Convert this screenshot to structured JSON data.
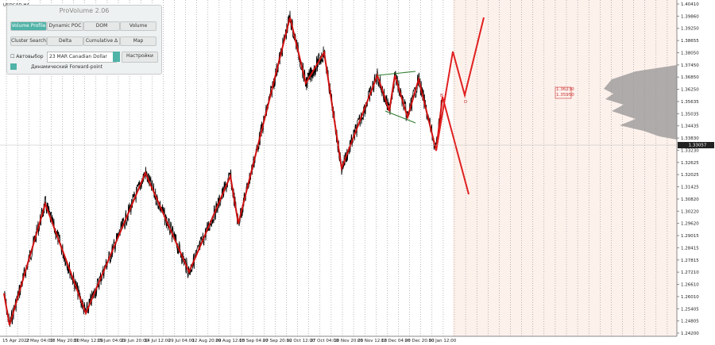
{
  "symbol": "USDCAD,H4",
  "panel": {
    "title": "ProVolume 2.06",
    "buttons": [
      "Volume Profile",
      "Dynamic POC",
      "DOM",
      "Volume",
      "Cluster Search",
      "Delta",
      "Cumulative Δ",
      "Map"
    ],
    "auto_select": "Автовыбор",
    "contract": "23 MAR Canadian Dollar",
    "settings": "Настройки",
    "forward_point": "Динамический Forward-point"
  },
  "price_axis": [
    "1.40410",
    "1.39860",
    "1.39250",
    "1.38655",
    "1.38050",
    "1.37450",
    "1.36850",
    "1.36250",
    "1.35635",
    "1.35035",
    "1.34435",
    "1.33830",
    "1.33230",
    "1.32625",
    "1.32025",
    "1.31425",
    "1.30820",
    "1.30220",
    "1.29620",
    "1.29015",
    "1.28415",
    "1.27815",
    "1.27210",
    "1.26610",
    "1.26010",
    "1.25405",
    "1.24805",
    "1.24200"
  ],
  "current_price": "1.33057",
  "profile_labels": [
    "1.36230",
    "1.35950"
  ],
  "wave_labels": [
    "B",
    "D"
  ],
  "time_axis": [
    "15 Apr 2022",
    "2 May 04:00",
    "18 May 20:00",
    "31 May 12:00",
    "15 Jun 04:00",
    "29 Jun 20:00",
    "14 Jul 12:00",
    "29 Jul 04:00",
    "12 Aug 20:00",
    "29 Aug 12:00",
    "13 Sep 04:00",
    "27 Sep 20:00",
    "12 Oct 12:00",
    "27 Oct 04:00",
    "10 Nov 20:00",
    "25 Nov 12:00",
    "12 Dec 04:00",
    "26 Dec 20:00",
    "10 Jan 12:00"
  ]
}
